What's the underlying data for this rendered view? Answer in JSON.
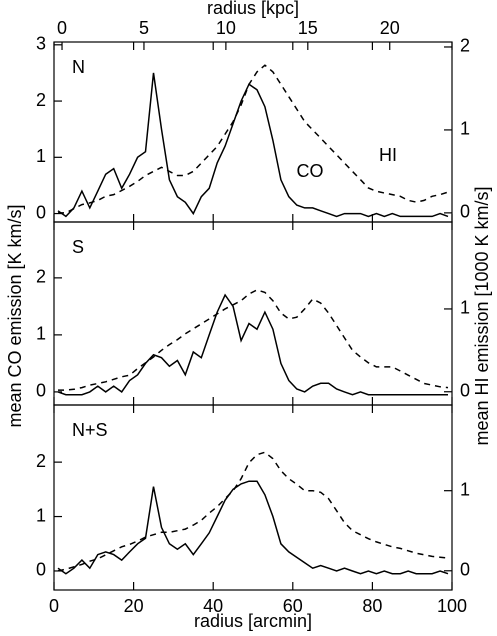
{
  "chart_data": [
    {
      "type": "line",
      "panel_label": "N",
      "x2label": "radius [kpc]",
      "x2lim": [
        -0.49,
        23.8
      ],
      "x2ticks": [
        0,
        5,
        10,
        15,
        20
      ],
      "x": [
        1,
        3,
        5,
        7,
        9,
        11,
        13,
        15,
        17,
        19,
        21,
        23,
        25,
        27,
        29,
        31,
        33,
        35,
        37,
        39,
        41,
        43,
        45,
        47,
        49,
        51,
        53,
        55,
        57,
        59,
        61,
        63,
        65,
        67,
        69,
        71,
        73,
        75,
        77,
        79,
        81,
        83,
        85,
        87,
        89,
        91,
        93,
        95,
        97,
        99
      ],
      "ylim": [
        -0.15,
        3.05
      ],
      "yticks": [
        0,
        1,
        2,
        3
      ],
      "y2lim": [
        -0.11,
        2.06
      ],
      "y2ticks": [
        0,
        1,
        2
      ],
      "series": [
        {
          "name": "CO",
          "color": "#000000",
          "linestyle": "solid",
          "values": [
            0.05,
            -0.05,
            0.1,
            0.4,
            0.1,
            0.4,
            0.7,
            0.8,
            0.45,
            0.7,
            1.0,
            1.1,
            2.5,
            1.5,
            0.6,
            0.3,
            0.2,
            0.0,
            0.3,
            0.45,
            0.9,
            1.2,
            1.6,
            2.0,
            2.3,
            2.2,
            1.9,
            1.3,
            0.6,
            0.3,
            0.15,
            0.1,
            0.1,
            0.05,
            0,
            -0.05,
            0,
            0,
            0,
            -0.05,
            0,
            -0.05,
            0,
            -0.05,
            -0.05,
            -0.05,
            -0.05,
            -0.05,
            0,
            -0.05
          ]
        },
        {
          "name": "HI",
          "color": "#000000",
          "linestyle": "dashed",
          "axis": "y2",
          "values": [
            0,
            0,
            0.05,
            0.1,
            0.12,
            0.15,
            0.2,
            0.22,
            0.27,
            0.32,
            0.38,
            0.45,
            0.5,
            0.55,
            0.5,
            0.45,
            0.45,
            0.5,
            0.6,
            0.7,
            0.8,
            0.95,
            1.1,
            1.3,
            1.55,
            1.7,
            1.78,
            1.7,
            1.55,
            1.4,
            1.25,
            1.1,
            1.0,
            0.9,
            0.8,
            0.7,
            0.6,
            0.5,
            0.4,
            0.3,
            0.26,
            0.24,
            0.22,
            0.2,
            0.15,
            0.13,
            0.15,
            0.2,
            0.22,
            0.25
          ]
        }
      ]
    },
    {
      "type": "line",
      "panel_label": "S",
      "ylabel": "mean CO emission [K km/s]",
      "y2label": "mean HI emission [1000 K km/s]",
      "x": [
        1,
        3,
        5,
        7,
        9,
        11,
        13,
        15,
        17,
        19,
        21,
        23,
        25,
        27,
        29,
        31,
        33,
        35,
        37,
        39,
        41,
        43,
        45,
        47,
        49,
        51,
        53,
        55,
        57,
        59,
        61,
        63,
        65,
        67,
        69,
        71,
        73,
        75,
        77,
        79,
        81,
        83,
        85,
        87,
        89,
        91,
        93,
        95,
        97,
        99
      ],
      "ylim": [
        -0.23,
        2.98
      ],
      "yticks": [
        0,
        1,
        2
      ],
      "y2lim": [
        -0.16,
        2.05
      ],
      "y2ticks": [
        0,
        1
      ],
      "series": [
        {
          "color": "#000000",
          "linestyle": "solid",
          "values": [
            0,
            -0.05,
            -0.05,
            -0.05,
            0,
            0.1,
            0,
            0.1,
            0,
            0.2,
            0.3,
            0.5,
            0.65,
            0.6,
            0.45,
            0.55,
            0.3,
            0.7,
            0.6,
            1.0,
            1.4,
            1.7,
            1.5,
            0.9,
            1.2,
            1.1,
            1.4,
            1.1,
            0.5,
            0.2,
            0.05,
            0,
            0.1,
            0.15,
            0.15,
            0.05,
            0,
            -0.05,
            0,
            -0.05,
            -0.05,
            -0.05,
            -0.05,
            -0.05,
            -0.05,
            -0.05,
            -0.05,
            -0.05,
            -0.05,
            -0.05
          ]
        },
        {
          "color": "#000000",
          "linestyle": "dashed",
          "axis": "y2",
          "values": [
            0.02,
            0.02,
            0.03,
            0.05,
            0.08,
            0.1,
            0.12,
            0.15,
            0.18,
            0.2,
            0.28,
            0.35,
            0.42,
            0.5,
            0.57,
            0.63,
            0.7,
            0.76,
            0.82,
            0.88,
            0.94,
            1.0,
            1.05,
            1.1,
            1.18,
            1.23,
            1.2,
            1.1,
            0.95,
            0.88,
            0.9,
            1.0,
            1.12,
            1.07,
            0.95,
            0.8,
            0.65,
            0.5,
            0.42,
            0.35,
            0.3,
            0.3,
            0.3,
            0.25,
            0.2,
            0.15,
            0.1,
            0.08,
            0.06,
            0.05
          ]
        }
      ]
    },
    {
      "type": "line",
      "panel_label": "N+S",
      "xlabel": "radius [arcmin]",
      "xlim": [
        0,
        100
      ],
      "xticks": [
        0,
        20,
        40,
        60,
        80,
        100
      ],
      "x": [
        1,
        3,
        5,
        7,
        9,
        11,
        13,
        15,
        17,
        19,
        21,
        23,
        25,
        27,
        29,
        31,
        33,
        35,
        37,
        39,
        41,
        43,
        45,
        47,
        49,
        51,
        53,
        55,
        57,
        59,
        61,
        63,
        65,
        67,
        69,
        71,
        73,
        75,
        77,
        79,
        81,
        83,
        85,
        87,
        89,
        91,
        93,
        95,
        97,
        99
      ],
      "ylim": [
        -0.35,
        3.05
      ],
      "yticks": [
        0,
        1,
        2
      ],
      "y2lim": [
        -0.24,
        2.07
      ],
      "y2ticks": [
        0,
        1
      ],
      "series": [
        {
          "color": "#000000",
          "linestyle": "solid",
          "values": [
            0.05,
            -0.05,
            0.05,
            0.2,
            0.05,
            0.3,
            0.35,
            0.3,
            0.2,
            0.35,
            0.5,
            0.6,
            1.55,
            0.8,
            0.5,
            0.4,
            0.5,
            0.3,
            0.5,
            0.7,
            1.0,
            1.3,
            1.5,
            1.6,
            1.65,
            1.65,
            1.4,
            1.0,
            0.5,
            0.35,
            0.25,
            0.15,
            0.05,
            0.1,
            0.05,
            0,
            0.05,
            0,
            -0.05,
            0,
            -0.05,
            0,
            -0.05,
            -0.05,
            0,
            -0.05,
            -0.05,
            -0.05,
            0,
            -0.05
          ]
        },
        {
          "color": "#000000",
          "linestyle": "dashed",
          "axis": "y2",
          "values": [
            0,
            0.02,
            0.05,
            0.08,
            0.12,
            0.15,
            0.2,
            0.25,
            0.3,
            0.33,
            0.37,
            0.42,
            0.45,
            0.48,
            0.48,
            0.5,
            0.52,
            0.57,
            0.63,
            0.72,
            0.8,
            0.9,
            1.0,
            1.15,
            1.35,
            1.45,
            1.48,
            1.4,
            1.25,
            1.15,
            1.08,
            1.0,
            1.0,
            0.98,
            0.9,
            0.75,
            0.6,
            0.5,
            0.45,
            0.4,
            0.36,
            0.33,
            0.3,
            0.28,
            0.25,
            0.22,
            0.2,
            0.18,
            0.17,
            0.16
          ]
        }
      ]
    }
  ]
}
